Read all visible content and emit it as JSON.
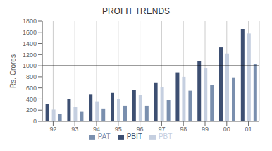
{
  "chart_data": {
    "type": "bar",
    "title": "PROFIT TRENDS",
    "ylabel": "Rs. Crores",
    "categories": [
      "92",
      "93",
      "94",
      "95",
      "96",
      "97",
      "98",
      "99",
      "00",
      "01"
    ],
    "series": [
      {
        "name": "PBIT",
        "color": "#3d4f72",
        "values": [
          310,
          400,
          490,
          510,
          560,
          700,
          880,
          1080,
          1330,
          1660
        ]
      },
      {
        "name": "PBT",
        "color": "#c5cfe0",
        "values": [
          210,
          260,
          360,
          400,
          480,
          620,
          800,
          950,
          1220,
          1580
        ]
      },
      {
        "name": "PAT",
        "color": "#7a8fae",
        "values": [
          130,
          170,
          230,
          280,
          280,
          380,
          550,
          650,
          790,
          1030
        ]
      }
    ],
    "ylim": [
      0,
      1800
    ],
    "yticks": [
      0,
      200,
      400,
      600,
      800,
      1000,
      1200,
      1400,
      1600,
      1800
    ],
    "hline": 1000,
    "grid": true,
    "legend": "bottom"
  }
}
